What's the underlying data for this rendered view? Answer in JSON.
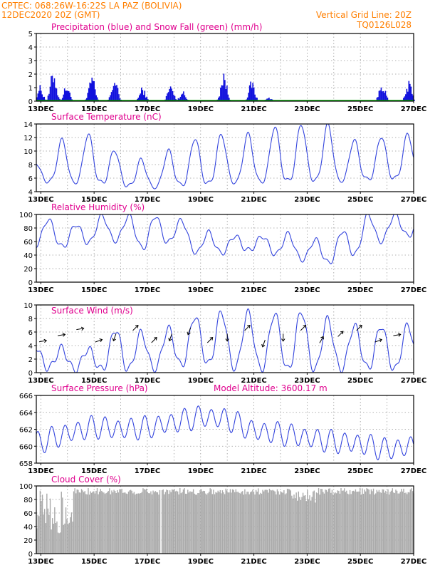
{
  "header": {
    "line1": "CPTEC:   068:26W-16:22S   LA PAZ (BOLIVIA)",
    "line2": "12DEC2020 20Z (GMT)",
    "grid_note": "Vertical Grid Line: 20Z",
    "run_code": "TQ0126L028"
  },
  "colors": {
    "header": "#ff7f00",
    "panel_title": "#e0008e",
    "line": "#3344dd",
    "precip_bar": "#1111dd",
    "snow": "#00aa00",
    "cloud": "#aaaaaa",
    "grid": "#9a9a9a"
  },
  "x_tick_labels": [
    "13DEC",
    "15DEC",
    "17DEC",
    "19DEC",
    "21DEC",
    "23DEC",
    "25DEC",
    "27DEC"
  ],
  "panels": [
    {
      "key": "precip",
      "title": "Precipitation (blue) and Snow Fall (green) (mm/h)",
      "extra": ""
    },
    {
      "key": "temp",
      "title": "Surface Temperature (nC)",
      "extra": ""
    },
    {
      "key": "rh",
      "title": "Relative Humidity (%)",
      "extra": ""
    },
    {
      "key": "wind",
      "title": "Surface Wind (m/s)",
      "extra": ""
    },
    {
      "key": "pres",
      "title": "Surface Pressure (hPa)",
      "extra": "Model Altitude: 3600.17 m"
    },
    {
      "key": "cloud",
      "title": "Cloud Cover (%)",
      "extra": ""
    }
  ],
  "chart_data": [
    {
      "id": "precip",
      "type": "bar",
      "title": "Precipitation (blue) and Snow Fall (green) (mm/h)",
      "ylim": [
        0,
        5
      ],
      "yticks": [
        0,
        1,
        2,
        3,
        4,
        5
      ],
      "x_days": [
        12.83,
        27.0
      ],
      "bursts": [
        {
          "x": 12.95,
          "peak": 1.2
        },
        {
          "x": 13.45,
          "peak": 2.5
        },
        {
          "x": 13.95,
          "peak": 1.3
        },
        {
          "x": 14.9,
          "peak": 2.0
        },
        {
          "x": 15.75,
          "peak": 1.9
        },
        {
          "x": 16.8,
          "peak": 1.1
        },
        {
          "x": 17.85,
          "peak": 1.3
        },
        {
          "x": 18.3,
          "peak": 0.8
        },
        {
          "x": 19.85,
          "peak": 2.3
        },
        {
          "x": 20.9,
          "peak": 1.6
        },
        {
          "x": 21.55,
          "peak": 0.3
        },
        {
          "x": 25.8,
          "peak": 1.6
        },
        {
          "x": 26.8,
          "peak": 1.5
        }
      ],
      "snow_value": 0.05
    },
    {
      "id": "temp",
      "type": "line",
      "title": "Surface Temperature (nC)",
      "ylim": [
        4,
        14
      ],
      "yticks": [
        4,
        6,
        8,
        10,
        12,
        14
      ],
      "x_days": [
        12.83,
        27.0
      ],
      "daily_min": [
        5.6,
        5.4,
        5.5,
        5.0,
        4.6,
        5.0,
        5.2,
        5.4,
        5.5,
        5.6,
        5.8,
        5.6,
        5.8,
        6.0,
        6.0
      ],
      "daily_max": [
        8.5,
        12.5,
        12.5,
        9.5,
        8.5,
        10.5,
        12.3,
        12.5,
        12.5,
        13.9,
        14.0,
        13.9,
        11.0,
        12.5,
        12.5
      ]
    },
    {
      "id": "rh",
      "type": "line",
      "title": "Relative Humidity (%)",
      "ylim": [
        0,
        100
      ],
      "yticks": [
        0,
        20,
        40,
        60,
        80,
        100
      ],
      "x_days": [
        12.83,
        27.0
      ],
      "daily_max": [
        98,
        80,
        98,
        98,
        98,
        98,
        75,
        70,
        65,
        75,
        62,
        65,
        100,
        100,
        100
      ],
      "daily_min": [
        55,
        52,
        60,
        62,
        48,
        62,
        40,
        44,
        48,
        40,
        32,
        28,
        45,
        65,
        70
      ]
    },
    {
      "id": "wind",
      "type": "line",
      "title": "Surface Wind (m/s)",
      "ylim": [
        0,
        10
      ],
      "yticks": [
        0,
        2,
        4,
        6,
        8,
        10
      ],
      "x_days": [
        12.83,
        27.0
      ],
      "daily_max": [
        4.0,
        3.5,
        3.5,
        7.2,
        5.5,
        6.8,
        8.8,
        9.0,
        8.8,
        8.8,
        9.2,
        7.5,
        6.8,
        7.0,
        7.0
      ],
      "daily_min": [
        0.8,
        0.5,
        0.5,
        0.5,
        0.5,
        1.0,
        1.5,
        0.8,
        0.6,
        0.5,
        0.5,
        0.5,
        0.8,
        0.5,
        0.5
      ],
      "arrow_dirs_deg": [
        80,
        80,
        80,
        70,
        200,
        45,
        45,
        200,
        200,
        45,
        180,
        45,
        200,
        180,
        45,
        30,
        45,
        45,
        70,
        80
      ]
    },
    {
      "id": "pres",
      "type": "line",
      "title": "Surface Pressure (hPa)",
      "ylim": [
        658,
        666
      ],
      "yticks": [
        658,
        660,
        662,
        664,
        666
      ],
      "x_days": [
        12.83,
        27.0
      ],
      "daily_mean": [
        660.5,
        661.5,
        662.3,
        662.0,
        662.2,
        662.8,
        663.5,
        663.2,
        661.8,
        661.5,
        661.0,
        660.5,
        660.3,
        659.6,
        660.0
      ],
      "semi_amplitude": 1.2
    },
    {
      "id": "cloud",
      "type": "bar",
      "title": "Cloud Cover (%)",
      "ylim": [
        0,
        100
      ],
      "yticks": [
        0,
        20,
        40,
        60,
        80,
        100
      ],
      "x_days": [
        12.83,
        27.0
      ],
      "typical_value": 92
    }
  ]
}
